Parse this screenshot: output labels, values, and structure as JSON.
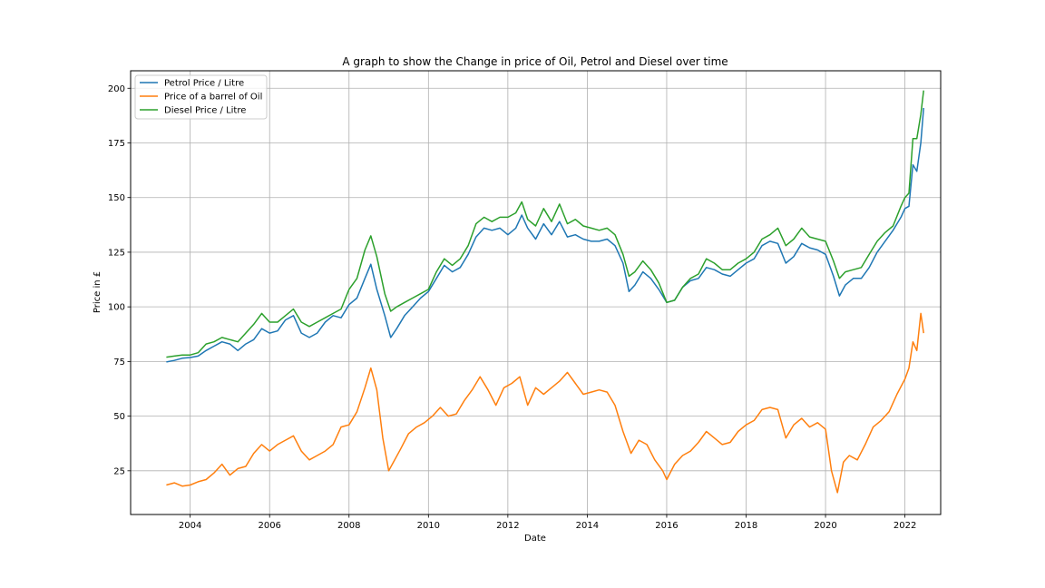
{
  "chart_data": {
    "type": "line",
    "title": "A graph to show the Change in price of Oil, Petrol and Diesel over time",
    "xlabel": "Date",
    "ylabel": "Price in £",
    "xlim": [
      2002.5,
      2022.9
    ],
    "ylim": [
      5,
      208
    ],
    "x_ticks": [
      2004,
      2006,
      2008,
      2010,
      2012,
      2014,
      2016,
      2018,
      2020,
      2022
    ],
    "y_ticks": [
      25,
      50,
      75,
      100,
      125,
      150,
      175,
      200
    ],
    "grid": true,
    "legend_position": "top-left",
    "series": [
      {
        "name": "Petrol Price / Litre",
        "color": "#1f77b4",
        "points": [
          [
            2003.4,
            74.8
          ],
          [
            2003.6,
            75.5
          ],
          [
            2003.8,
            76.5
          ],
          [
            2004.0,
            76.8
          ],
          [
            2004.2,
            77.5
          ],
          [
            2004.4,
            80
          ],
          [
            2004.6,
            82
          ],
          [
            2004.8,
            84
          ],
          [
            2005.0,
            83
          ],
          [
            2005.2,
            80
          ],
          [
            2005.4,
            83
          ],
          [
            2005.6,
            85
          ],
          [
            2005.8,
            90
          ],
          [
            2006.0,
            88
          ],
          [
            2006.2,
            89
          ],
          [
            2006.4,
            94
          ],
          [
            2006.6,
            96
          ],
          [
            2006.8,
            88
          ],
          [
            2007.0,
            86
          ],
          [
            2007.2,
            88
          ],
          [
            2007.4,
            93
          ],
          [
            2007.6,
            96
          ],
          [
            2007.8,
            95
          ],
          [
            2008.0,
            101
          ],
          [
            2008.2,
            104
          ],
          [
            2008.4,
            113
          ],
          [
            2008.55,
            119.5
          ],
          [
            2008.7,
            108
          ],
          [
            2008.9,
            96
          ],
          [
            2009.05,
            86
          ],
          [
            2009.2,
            90
          ],
          [
            2009.4,
            96
          ],
          [
            2009.6,
            100
          ],
          [
            2009.8,
            104
          ],
          [
            2010.0,
            107
          ],
          [
            2010.2,
            113
          ],
          [
            2010.4,
            119
          ],
          [
            2010.6,
            116
          ],
          [
            2010.8,
            118
          ],
          [
            2011.0,
            124
          ],
          [
            2011.2,
            132
          ],
          [
            2011.4,
            136
          ],
          [
            2011.6,
            135
          ],
          [
            2011.8,
            136
          ],
          [
            2012.0,
            133
          ],
          [
            2012.2,
            136
          ],
          [
            2012.35,
            142
          ],
          [
            2012.5,
            136
          ],
          [
            2012.7,
            131
          ],
          [
            2012.9,
            138
          ],
          [
            2013.1,
            133
          ],
          [
            2013.3,
            139
          ],
          [
            2013.5,
            132
          ],
          [
            2013.7,
            133
          ],
          [
            2013.9,
            131
          ],
          [
            2014.1,
            130
          ],
          [
            2014.3,
            130
          ],
          [
            2014.5,
            131
          ],
          [
            2014.7,
            128
          ],
          [
            2014.9,
            120
          ],
          [
            2015.05,
            107
          ],
          [
            2015.2,
            110
          ],
          [
            2015.4,
            116
          ],
          [
            2015.6,
            113
          ],
          [
            2015.8,
            108
          ],
          [
            2016.0,
            102
          ],
          [
            2016.2,
            103
          ],
          [
            2016.4,
            109
          ],
          [
            2016.6,
            112
          ],
          [
            2016.8,
            113
          ],
          [
            2017.0,
            118
          ],
          [
            2017.2,
            117
          ],
          [
            2017.4,
            115
          ],
          [
            2017.6,
            114
          ],
          [
            2017.8,
            117
          ],
          [
            2018.0,
            120
          ],
          [
            2018.2,
            122
          ],
          [
            2018.4,
            128
          ],
          [
            2018.6,
            130
          ],
          [
            2018.8,
            129
          ],
          [
            2019.0,
            120
          ],
          [
            2019.2,
            123
          ],
          [
            2019.4,
            129
          ],
          [
            2019.6,
            127
          ],
          [
            2019.8,
            126
          ],
          [
            2020.0,
            124
          ],
          [
            2020.2,
            114
          ],
          [
            2020.35,
            105
          ],
          [
            2020.5,
            110
          ],
          [
            2020.7,
            113
          ],
          [
            2020.9,
            113
          ],
          [
            2021.1,
            118
          ],
          [
            2021.3,
            125
          ],
          [
            2021.5,
            130
          ],
          [
            2021.7,
            135
          ],
          [
            2021.9,
            141
          ],
          [
            2022.0,
            145
          ],
          [
            2022.1,
            146
          ],
          [
            2022.2,
            165
          ],
          [
            2022.3,
            162
          ],
          [
            2022.4,
            175
          ],
          [
            2022.47,
            191
          ]
        ]
      },
      {
        "name": "Price of a barrel of Oil",
        "color": "#ff7f0e",
        "points": [
          [
            2003.4,
            18.5
          ],
          [
            2003.6,
            19.5
          ],
          [
            2003.8,
            18
          ],
          [
            2004.0,
            18.5
          ],
          [
            2004.2,
            20
          ],
          [
            2004.4,
            21
          ],
          [
            2004.6,
            24
          ],
          [
            2004.8,
            28
          ],
          [
            2005.0,
            23
          ],
          [
            2005.2,
            26
          ],
          [
            2005.4,
            27
          ],
          [
            2005.6,
            33
          ],
          [
            2005.8,
            37
          ],
          [
            2006.0,
            34
          ],
          [
            2006.2,
            37
          ],
          [
            2006.4,
            39
          ],
          [
            2006.6,
            41
          ],
          [
            2006.8,
            34
          ],
          [
            2007.0,
            30
          ],
          [
            2007.2,
            32
          ],
          [
            2007.4,
            34
          ],
          [
            2007.6,
            37
          ],
          [
            2007.8,
            45
          ],
          [
            2008.0,
            46
          ],
          [
            2008.2,
            52
          ],
          [
            2008.4,
            63
          ],
          [
            2008.55,
            72
          ],
          [
            2008.7,
            62
          ],
          [
            2008.85,
            40
          ],
          [
            2009.0,
            25
          ],
          [
            2009.15,
            30
          ],
          [
            2009.3,
            35
          ],
          [
            2009.5,
            42
          ],
          [
            2009.7,
            45
          ],
          [
            2009.9,
            47
          ],
          [
            2010.1,
            50
          ],
          [
            2010.3,
            54
          ],
          [
            2010.5,
            50
          ],
          [
            2010.7,
            51
          ],
          [
            2010.9,
            57
          ],
          [
            2011.1,
            62
          ],
          [
            2011.3,
            68
          ],
          [
            2011.5,
            62
          ],
          [
            2011.7,
            55
          ],
          [
            2011.9,
            63
          ],
          [
            2012.1,
            65
          ],
          [
            2012.3,
            68
          ],
          [
            2012.5,
            55
          ],
          [
            2012.7,
            63
          ],
          [
            2012.9,
            60
          ],
          [
            2013.1,
            63
          ],
          [
            2013.3,
            66
          ],
          [
            2013.5,
            70
          ],
          [
            2013.7,
            65
          ],
          [
            2013.9,
            60
          ],
          [
            2014.1,
            61
          ],
          [
            2014.3,
            62
          ],
          [
            2014.5,
            61
          ],
          [
            2014.7,
            55
          ],
          [
            2014.9,
            43
          ],
          [
            2015.1,
            33
          ],
          [
            2015.3,
            39
          ],
          [
            2015.5,
            37
          ],
          [
            2015.7,
            30
          ],
          [
            2015.9,
            25
          ],
          [
            2016.0,
            21
          ],
          [
            2016.2,
            28
          ],
          [
            2016.4,
            32
          ],
          [
            2016.6,
            34
          ],
          [
            2016.8,
            38
          ],
          [
            2017.0,
            43
          ],
          [
            2017.2,
            40
          ],
          [
            2017.4,
            37
          ],
          [
            2017.6,
            38
          ],
          [
            2017.8,
            43
          ],
          [
            2018.0,
            46
          ],
          [
            2018.2,
            48
          ],
          [
            2018.4,
            53
          ],
          [
            2018.6,
            54
          ],
          [
            2018.8,
            53
          ],
          [
            2019.0,
            40
          ],
          [
            2019.2,
            46
          ],
          [
            2019.4,
            49
          ],
          [
            2019.6,
            45
          ],
          [
            2019.8,
            47
          ],
          [
            2020.0,
            44
          ],
          [
            2020.15,
            25
          ],
          [
            2020.3,
            15
          ],
          [
            2020.45,
            29
          ],
          [
            2020.6,
            32
          ],
          [
            2020.8,
            30
          ],
          [
            2021.0,
            37
          ],
          [
            2021.2,
            45
          ],
          [
            2021.4,
            48
          ],
          [
            2021.6,
            52
          ],
          [
            2021.8,
            60
          ],
          [
            2022.0,
            67
          ],
          [
            2022.1,
            72
          ],
          [
            2022.2,
            84
          ],
          [
            2022.3,
            80
          ],
          [
            2022.4,
            97
          ],
          [
            2022.47,
            88
          ]
        ]
      },
      {
        "name": "Diesel Price / Litre",
        "color": "#2ca02c",
        "points": [
          [
            2003.4,
            77
          ],
          [
            2003.6,
            77.5
          ],
          [
            2003.8,
            78
          ],
          [
            2004.0,
            78
          ],
          [
            2004.2,
            79
          ],
          [
            2004.4,
            83
          ],
          [
            2004.6,
            84
          ],
          [
            2004.8,
            86
          ],
          [
            2005.0,
            85
          ],
          [
            2005.2,
            84
          ],
          [
            2005.4,
            88
          ],
          [
            2005.6,
            92
          ],
          [
            2005.8,
            97
          ],
          [
            2006.0,
            93
          ],
          [
            2006.2,
            93
          ],
          [
            2006.4,
            96
          ],
          [
            2006.6,
            99
          ],
          [
            2006.8,
            93
          ],
          [
            2007.0,
            91
          ],
          [
            2007.2,
            93
          ],
          [
            2007.4,
            95
          ],
          [
            2007.6,
            97
          ],
          [
            2007.8,
            99
          ],
          [
            2008.0,
            108
          ],
          [
            2008.2,
            113
          ],
          [
            2008.4,
            126
          ],
          [
            2008.55,
            132.5
          ],
          [
            2008.7,
            123
          ],
          [
            2008.9,
            106
          ],
          [
            2009.05,
            98
          ],
          [
            2009.2,
            100
          ],
          [
            2009.4,
            102
          ],
          [
            2009.6,
            104
          ],
          [
            2009.8,
            106
          ],
          [
            2010.0,
            108
          ],
          [
            2010.2,
            116
          ],
          [
            2010.4,
            122
          ],
          [
            2010.6,
            119
          ],
          [
            2010.8,
            122
          ],
          [
            2011.0,
            128
          ],
          [
            2011.2,
            138
          ],
          [
            2011.4,
            141
          ],
          [
            2011.6,
            139
          ],
          [
            2011.8,
            141
          ],
          [
            2012.0,
            141
          ],
          [
            2012.2,
            143
          ],
          [
            2012.35,
            148
          ],
          [
            2012.5,
            140
          ],
          [
            2012.7,
            137
          ],
          [
            2012.9,
            145
          ],
          [
            2013.1,
            139
          ],
          [
            2013.3,
            147
          ],
          [
            2013.5,
            138
          ],
          [
            2013.7,
            140
          ],
          [
            2013.9,
            137
          ],
          [
            2014.1,
            136
          ],
          [
            2014.3,
            135
          ],
          [
            2014.5,
            136
          ],
          [
            2014.7,
            133
          ],
          [
            2014.9,
            124
          ],
          [
            2015.05,
            114
          ],
          [
            2015.2,
            116
          ],
          [
            2015.4,
            121
          ],
          [
            2015.6,
            117
          ],
          [
            2015.8,
            111
          ],
          [
            2016.0,
            102
          ],
          [
            2016.2,
            103
          ],
          [
            2016.4,
            109
          ],
          [
            2016.6,
            113
          ],
          [
            2016.8,
            115
          ],
          [
            2017.0,
            122
          ],
          [
            2017.2,
            120
          ],
          [
            2017.4,
            117
          ],
          [
            2017.6,
            117
          ],
          [
            2017.8,
            120
          ],
          [
            2018.0,
            122
          ],
          [
            2018.2,
            125
          ],
          [
            2018.4,
            131
          ],
          [
            2018.6,
            133
          ],
          [
            2018.8,
            136
          ],
          [
            2019.0,
            128
          ],
          [
            2019.2,
            131
          ],
          [
            2019.4,
            136
          ],
          [
            2019.6,
            132
          ],
          [
            2019.8,
            131
          ],
          [
            2020.0,
            130
          ],
          [
            2020.2,
            121
          ],
          [
            2020.35,
            113
          ],
          [
            2020.5,
            116
          ],
          [
            2020.7,
            117
          ],
          [
            2020.9,
            118
          ],
          [
            2021.1,
            124
          ],
          [
            2021.3,
            130
          ],
          [
            2021.5,
            134
          ],
          [
            2021.7,
            137
          ],
          [
            2021.9,
            146
          ],
          [
            2022.0,
            150
          ],
          [
            2022.1,
            152
          ],
          [
            2022.2,
            177
          ],
          [
            2022.3,
            177
          ],
          [
            2022.4,
            188
          ],
          [
            2022.47,
            199
          ]
        ]
      }
    ]
  }
}
